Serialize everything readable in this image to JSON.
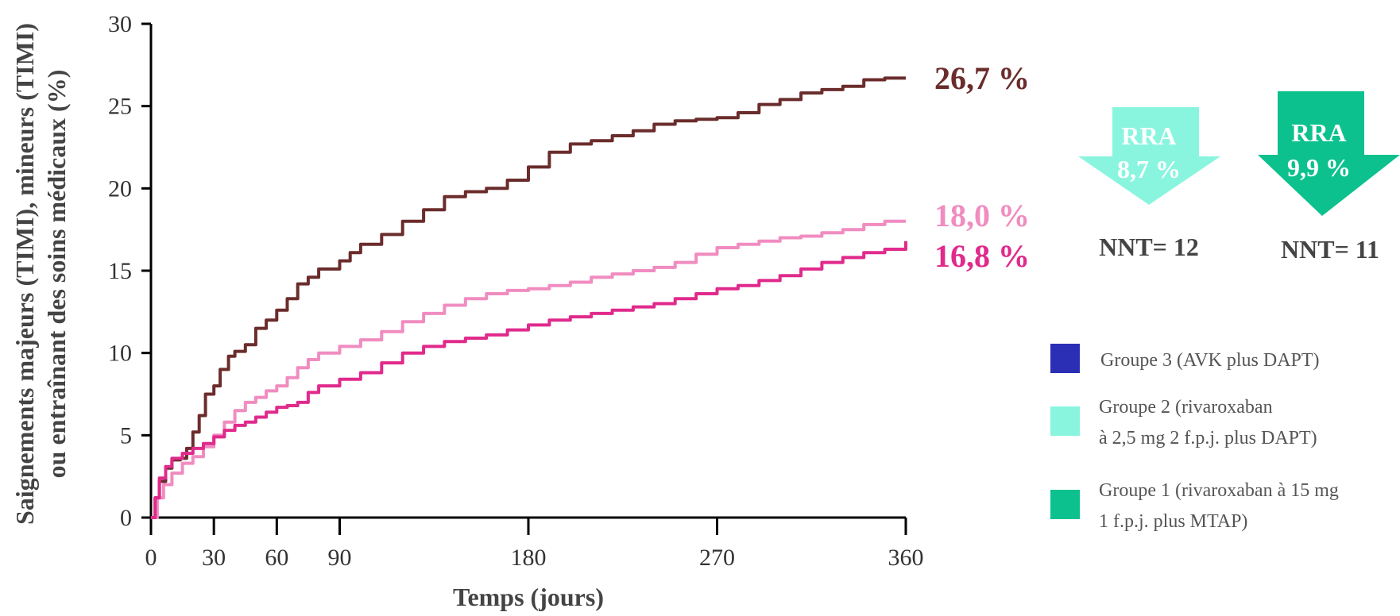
{
  "chart_data": {
    "type": "line",
    "xlabel": "Temps (jours)",
    "ylabel_line1": "Saignements majeurs (TIMI), mineurs (TIMI)",
    "ylabel_line2": "ou entraînant des soins médicaux (%)",
    "xlim": [
      0,
      360
    ],
    "ylim": [
      0,
      30
    ],
    "x_ticks": [
      0,
      30,
      60,
      90,
      180,
      270,
      360
    ],
    "y_ticks": [
      0,
      5,
      10,
      15,
      20,
      25,
      30
    ],
    "grid": false,
    "series": [
      {
        "name": "Groupe 3 (AVK plus DAPT)",
        "color": "#6b2c2c",
        "end_label": "26,7 %",
        "points": [
          [
            0,
            0
          ],
          [
            2,
            1.2
          ],
          [
            4,
            2.2
          ],
          [
            7,
            3
          ],
          [
            10,
            3.5
          ],
          [
            14,
            3.6
          ],
          [
            17,
            4.2
          ],
          [
            20,
            5.2
          ],
          [
            23,
            6.2
          ],
          [
            26,
            7.5
          ],
          [
            30,
            8
          ],
          [
            33,
            9
          ],
          [
            37,
            9.8
          ],
          [
            40,
            10.1
          ],
          [
            45,
            10.5
          ],
          [
            50,
            11.5
          ],
          [
            55,
            12
          ],
          [
            60,
            12.6
          ],
          [
            65,
            13.3
          ],
          [
            70,
            14.2
          ],
          [
            75,
            14.6
          ],
          [
            80,
            15.1
          ],
          [
            90,
            15.6
          ],
          [
            95,
            16.1
          ],
          [
            100,
            16.6
          ],
          [
            110,
            17.2
          ],
          [
            120,
            18
          ],
          [
            130,
            18.7
          ],
          [
            140,
            19.5
          ],
          [
            150,
            19.8
          ],
          [
            160,
            20
          ],
          [
            170,
            20.5
          ],
          [
            180,
            21.3
          ],
          [
            190,
            22.2
          ],
          [
            200,
            22.7
          ],
          [
            210,
            22.9
          ],
          [
            220,
            23.2
          ],
          [
            230,
            23.5
          ],
          [
            240,
            23.9
          ],
          [
            250,
            24.1
          ],
          [
            260,
            24.2
          ],
          [
            270,
            24.3
          ],
          [
            280,
            24.6
          ],
          [
            290,
            25.1
          ],
          [
            300,
            25.4
          ],
          [
            310,
            25.8
          ],
          [
            320,
            26
          ],
          [
            330,
            26.2
          ],
          [
            340,
            26.6
          ],
          [
            350,
            26.7
          ],
          [
            360,
            26.7
          ]
        ]
      },
      {
        "name": "Groupe 2 (rivaroxaban à 2,5 mg 2 f.p.j. plus DAPT)",
        "color": "#f08cc0",
        "end_label": "18,0 %",
        "points": [
          [
            0,
            0
          ],
          [
            3,
            1.2
          ],
          [
            6,
            2
          ],
          [
            10,
            2.7
          ],
          [
            15,
            3.3
          ],
          [
            20,
            3.7
          ],
          [
            25,
            4.3
          ],
          [
            30,
            5
          ],
          [
            35,
            5.8
          ],
          [
            40,
            6.5
          ],
          [
            45,
            7
          ],
          [
            50,
            7.3
          ],
          [
            55,
            7.7
          ],
          [
            60,
            8
          ],
          [
            65,
            8.5
          ],
          [
            70,
            9.1
          ],
          [
            75,
            9.6
          ],
          [
            80,
            10
          ],
          [
            90,
            10.4
          ],
          [
            100,
            10.8
          ],
          [
            110,
            11.3
          ],
          [
            120,
            11.9
          ],
          [
            130,
            12.4
          ],
          [
            140,
            12.9
          ],
          [
            150,
            13.3
          ],
          [
            160,
            13.6
          ],
          [
            170,
            13.8
          ],
          [
            180,
            13.9
          ],
          [
            190,
            14.1
          ],
          [
            200,
            14.3
          ],
          [
            210,
            14.6
          ],
          [
            220,
            14.8
          ],
          [
            230,
            15
          ],
          [
            240,
            15.2
          ],
          [
            250,
            15.5
          ],
          [
            260,
            16
          ],
          [
            270,
            16.4
          ],
          [
            280,
            16.6
          ],
          [
            290,
            16.8
          ],
          [
            300,
            17
          ],
          [
            310,
            17.1
          ],
          [
            320,
            17.3
          ],
          [
            330,
            17.5
          ],
          [
            340,
            17.8
          ],
          [
            350,
            18
          ],
          [
            360,
            18
          ]
        ]
      },
      {
        "name": "Groupe 1 (rivaroxaban à 15 mg 1 f.p.j. plus MTAP)",
        "color": "#e02a8c",
        "end_label": "16,8 %",
        "points": [
          [
            0,
            0
          ],
          [
            2,
            1.2
          ],
          [
            4,
            2.4
          ],
          [
            7,
            3.1
          ],
          [
            10,
            3.6
          ],
          [
            15,
            3.9
          ],
          [
            20,
            4.2
          ],
          [
            25,
            4.5
          ],
          [
            30,
            4.9
          ],
          [
            35,
            5.3
          ],
          [
            40,
            5.6
          ],
          [
            45,
            5.8
          ],
          [
            50,
            6.1
          ],
          [
            55,
            6.4
          ],
          [
            60,
            6.7
          ],
          [
            65,
            6.8
          ],
          [
            70,
            7
          ],
          [
            75,
            7.6
          ],
          [
            80,
            8
          ],
          [
            90,
            8.4
          ],
          [
            100,
            8.8
          ],
          [
            110,
            9.4
          ],
          [
            120,
            10
          ],
          [
            130,
            10.4
          ],
          [
            140,
            10.7
          ],
          [
            150,
            10.9
          ],
          [
            160,
            11.1
          ],
          [
            170,
            11.4
          ],
          [
            180,
            11.7
          ],
          [
            190,
            12
          ],
          [
            200,
            12.2
          ],
          [
            210,
            12.4
          ],
          [
            220,
            12.6
          ],
          [
            230,
            12.8
          ],
          [
            240,
            13
          ],
          [
            250,
            13.3
          ],
          [
            260,
            13.6
          ],
          [
            270,
            13.9
          ],
          [
            280,
            14.1
          ],
          [
            290,
            14.4
          ],
          [
            300,
            14.7
          ],
          [
            310,
            15.1
          ],
          [
            320,
            15.5
          ],
          [
            330,
            15.8
          ],
          [
            340,
            16.1
          ],
          [
            350,
            16.3
          ],
          [
            360,
            16.8
          ]
        ]
      }
    ]
  },
  "arrows": [
    {
      "label": "RRA",
      "value": "8,7 %",
      "nnt": "NNT= 12",
      "color": "#8af5df"
    },
    {
      "label": "RRA",
      "value": "9,9 %",
      "nnt": "NNT= 11",
      "color": "#0cc18e"
    }
  ],
  "legend": [
    {
      "line1": "Groupe 3 (AVK plus DAPT)",
      "line2": "",
      "color": "#2b2fb5"
    },
    {
      "line1": "Groupe 2 (rivaroxaban",
      "line2": "à 2,5 mg 2 f.p.j. plus DAPT)",
      "color": "#8af5df"
    },
    {
      "line1": "Groupe 1 (rivaroxaban à 15 mg",
      "line2": "1 f.p.j. plus MTAP)",
      "color": "#0cc18e"
    }
  ]
}
